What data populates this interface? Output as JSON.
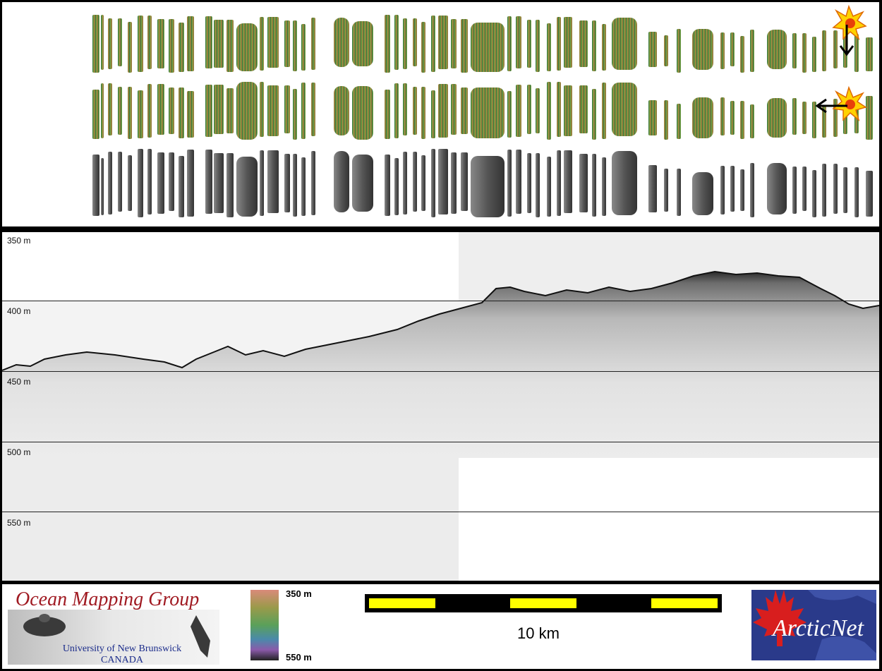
{
  "profile": {
    "depth_labels": [
      "350 m",
      "400 m",
      "450 m",
      "500 m",
      "550 m"
    ]
  },
  "footer": {
    "omg_title": "Ocean Mapping Group",
    "omg_university": "University of New Brunswick",
    "omg_country": "CANADA",
    "colorbar_top": "350 m",
    "colorbar_bottom": "550 m",
    "scale_label": "10 km",
    "arcticnet_text": "ArcticNet"
  },
  "icons": {
    "sun_down": "sun-arrow-down-icon",
    "sun_left": "sun-arrow-left-icon"
  },
  "colors": {
    "omg_red": "#a01a22",
    "omg_blue": "#1a2b8a",
    "scale_yellow": "#ffff00",
    "arcticnet_bg": "#2a3a8a"
  }
}
